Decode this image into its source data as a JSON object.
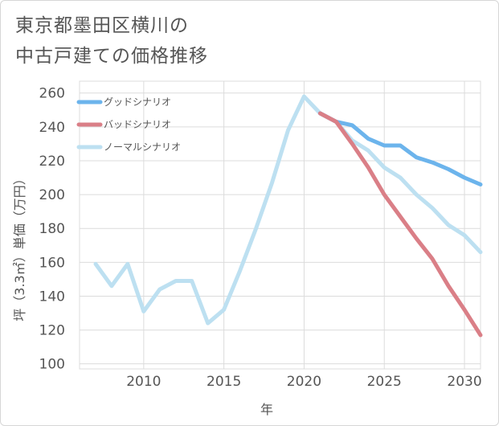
{
  "page": {
    "title_line1": "東京都墨田区横川の",
    "title_line2": "中古戸建ての価格推移"
  },
  "chart_data": {
    "type": "line",
    "title": "東京都墨田区横川の中古戸建ての価格推移",
    "xlabel": "年",
    "ylabel": "坪（3.3㎡）単価（万円）",
    "xlim": [
      2006,
      2031
    ],
    "ylim": [
      97,
      267
    ],
    "xticks": [
      2010,
      2015,
      2020,
      2025,
      2030
    ],
    "yticks": [
      100,
      120,
      140,
      160,
      180,
      200,
      220,
      240,
      260
    ],
    "grid": true,
    "legend_position": "top-left",
    "series": [
      {
        "name": "グッドシナリオ",
        "color": "#6cb4ec",
        "x": [
          2021,
          2022,
          2023,
          2024,
          2025,
          2026,
          2027,
          2028,
          2029,
          2030,
          2031
        ],
        "y": [
          248,
          243,
          241,
          233,
          229,
          229,
          222,
          219,
          215,
          210,
          206
        ]
      },
      {
        "name": "バッドシナリオ",
        "color": "#da7f87",
        "x": [
          2021,
          2022,
          2023,
          2024,
          2025,
          2026,
          2027,
          2028,
          2029,
          2030,
          2031
        ],
        "y": [
          248,
          243,
          230,
          216,
          200,
          187,
          174,
          162,
          146,
          132,
          117
        ]
      },
      {
        "name": "ノーマルシナリオ",
        "color": "#bde0f1",
        "x": [
          2007,
          2008,
          2009,
          2010,
          2011,
          2012,
          2013,
          2014,
          2015,
          2016,
          2017,
          2018,
          2019,
          2020,
          2021,
          2022,
          2023,
          2024,
          2025,
          2026,
          2027,
          2028,
          2029,
          2030,
          2031
        ],
        "y": [
          159,
          146,
          159,
          131,
          144,
          149,
          149,
          124,
          132,
          155,
          180,
          207,
          238,
          258,
          248,
          243,
          232,
          226,
          216,
          210,
          200,
          192,
          182,
          176,
          166
        ]
      }
    ]
  }
}
